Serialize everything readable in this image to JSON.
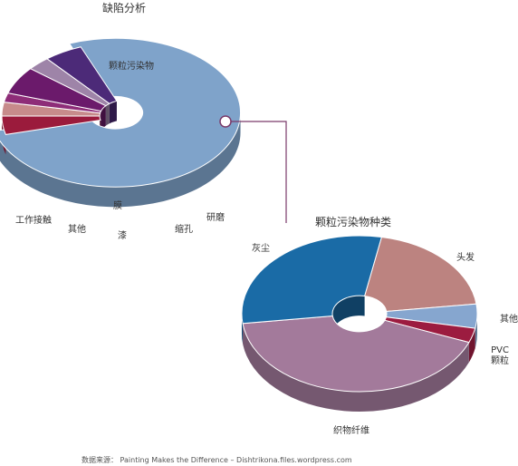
{
  "chart_data": [
    {
      "type": "pie",
      "title": "缺陷分析",
      "categories": [
        "颗粒污染物",
        "研磨",
        "缩孔",
        "膜",
        "漆",
        "其他",
        "工作接触"
      ],
      "values": [
        77,
        4,
        3,
        2,
        6,
        3,
        5
      ],
      "colors": [
        "#7fa3ca",
        "#9b1b3c",
        "#c78b8b",
        "#8e2d78",
        "#6b1a6b",
        "#9e84a8",
        "#4c2a78"
      ],
      "value_unit": "estimated percent",
      "exploded": "颗粒污染物",
      "style": "3d-donut"
    },
    {
      "type": "pie",
      "title": "颗粒污染物种类",
      "categories": [
        "头发",
        "其他",
        "PVC 颗粒",
        "织物纤维",
        "灰尘"
      ],
      "values": [
        20,
        5,
        3,
        42,
        30
      ],
      "colors": [
        "#bc8380",
        "#86a6cf",
        "#9c1c40",
        "#a37a9b",
        "#1a6ba6"
      ],
      "value_unit": "estimated percent",
      "style": "3d-donut"
    }
  ],
  "source": "数据来源：  Painting Makes the Difference – Dishtrikona.files.wordpress.com"
}
